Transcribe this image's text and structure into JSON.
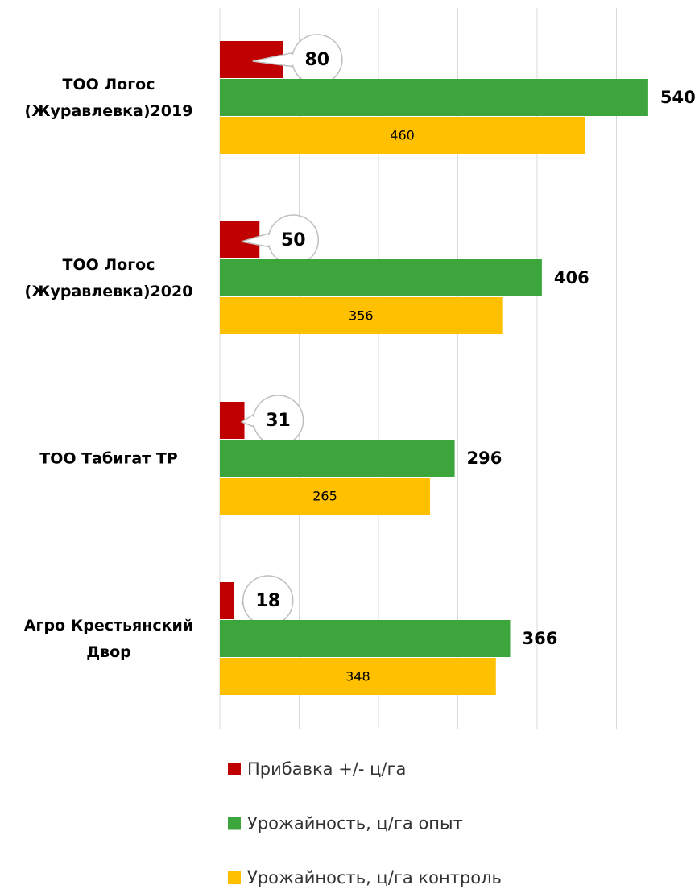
{
  "chart_data": {
    "type": "bar",
    "orientation": "horizontal",
    "categories": [
      "ТОО Логос\n(Журавлевка)2019",
      "ТОО Логос\n(Журавлевка)2020",
      "ТОО Табигат ТР",
      "Агро Крестьянский\nДвор"
    ],
    "series": [
      {
        "name": "Прибавка +/- ц/га",
        "color": "#c00000",
        "values": [
          80,
          50,
          31,
          18
        ]
      },
      {
        "name": "Урожайность, ц/га опыт",
        "color": "#3ca63c",
        "values": [
          540,
          406,
          296,
          366
        ]
      },
      {
        "name": "Урожайность, ц/га контроль",
        "color": "#ffc000",
        "values": [
          460,
          356,
          265,
          348
        ]
      }
    ],
    "xlim": [
      0,
      600
    ],
    "xticks": [
      0,
      100,
      200,
      300,
      400,
      500
    ],
    "grid": true,
    "legend": "bottom"
  }
}
